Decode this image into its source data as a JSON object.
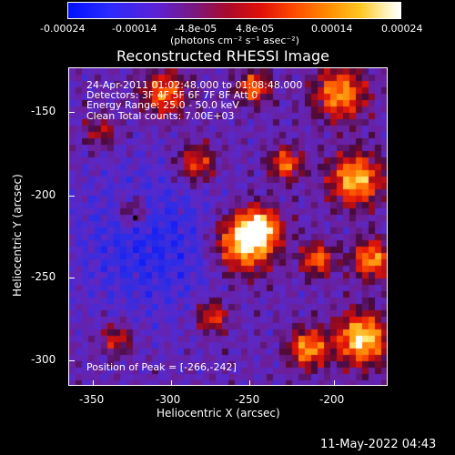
{
  "colorbar": {
    "ticks": [
      "-0.00024",
      "-0.00014",
      "-4.8e-05",
      "4.8e-05",
      "0.00014",
      "0.00024"
    ],
    "units": "(photons cm⁻² s⁻¹ asec⁻²)"
  },
  "title": "Reconstructed RHESSI Image",
  "info": {
    "line1": "24-Apr-2011 01:02:48.000 to 01:08:48.000",
    "line2": "Detectors: 3F 4F 5F 6F 7F 8F  Att 0",
    "line3": "Energy Range: 25.0 - 50.0 keV",
    "line4": "Clean    Total counts: 7.00E+03"
  },
  "peak": "Position of Peak = [-266,-242]",
  "axes": {
    "xlabel": "Heliocentric X (arcsec)",
    "ylabel": "Heliocentric Y (arcsec)",
    "xticks": [
      "-350",
      "-300",
      "-250",
      "-200"
    ],
    "yticks": [
      "-150",
      "-200",
      "-250",
      "-300"
    ]
  },
  "footer_date": "11-May-2022 04:43",
  "chart_data": {
    "type": "heatmap",
    "title": "Reconstructed RHESSI Image",
    "xlabel": "Heliocentric X (arcsec)",
    "ylabel": "Heliocentric Y (arcsec)",
    "xlim": [
      -360,
      -170
    ],
    "ylim": [
      -315,
      -125
    ],
    "zlim": [
      -0.00024,
      0.00024
    ],
    "peak": [
      -266,
      -242
    ]
  }
}
